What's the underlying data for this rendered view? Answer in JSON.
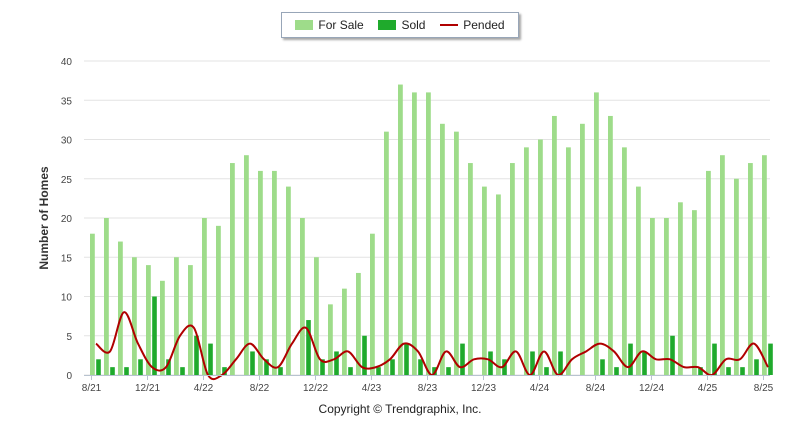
{
  "chart_data": {
    "type": "bar",
    "ylabel": "Number of Homes",
    "ylim": [
      0,
      40
    ],
    "yticks": [
      0,
      5,
      10,
      15,
      20,
      25,
      30,
      35,
      40
    ],
    "categories": [
      "8/21",
      "9/21",
      "10/21",
      "11/21",
      "12/21",
      "1/22",
      "2/22",
      "3/22",
      "4/22",
      "5/22",
      "6/22",
      "7/22",
      "8/22",
      "9/22",
      "10/22",
      "11/22",
      "12/22",
      "1/23",
      "2/23",
      "3/23",
      "4/23",
      "5/23",
      "6/23",
      "7/23",
      "8/23",
      "9/23",
      "10/23",
      "11/23",
      "12/23",
      "1/24",
      "2/24",
      "3/24",
      "4/24",
      "5/24",
      "6/24",
      "7/24",
      "8/24",
      "9/24",
      "10/24",
      "11/24",
      "12/24",
      "1/25",
      "2/25",
      "3/25",
      "4/25",
      "5/25",
      "6/25",
      "7/25",
      "8/25"
    ],
    "tick_labels": [
      {
        "index": 0,
        "label": "8/21"
      },
      {
        "index": 4,
        "label": "12/21"
      },
      {
        "index": 8,
        "label": "4/22"
      },
      {
        "index": 12,
        "label": "8/22"
      },
      {
        "index": 16,
        "label": "12/22"
      },
      {
        "index": 20,
        "label": "4/23"
      },
      {
        "index": 24,
        "label": "8/23"
      },
      {
        "index": 28,
        "label": "12/23"
      },
      {
        "index": 32,
        "label": "4/24"
      },
      {
        "index": 36,
        "label": "8/24"
      },
      {
        "index": 40,
        "label": "12/24"
      },
      {
        "index": 44,
        "label": "4/25"
      },
      {
        "index": 48,
        "label": "8/25"
      }
    ],
    "series": [
      {
        "name": "For Sale",
        "kind": "bar",
        "color": "#9edc8a",
        "values": [
          18,
          20,
          17,
          15,
          14,
          12,
          15,
          14,
          20,
          19,
          27,
          28,
          26,
          26,
          24,
          20,
          15,
          9,
          11,
          13,
          18,
          31,
          37,
          36,
          36,
          32,
          31,
          27,
          24,
          23,
          27,
          29,
          30,
          33,
          29,
          32,
          36,
          33,
          29,
          24,
          20,
          20,
          22,
          21,
          26,
          28,
          25,
          27,
          28
        ]
      },
      {
        "name": "Sold",
        "kind": "bar",
        "color": "#1faa2c",
        "values": [
          2,
          1,
          1,
          2,
          10,
          2,
          1,
          5,
          4,
          1,
          0,
          3,
          2,
          1,
          0,
          7,
          2,
          3,
          1,
          5,
          1,
          2,
          4,
          2,
          1,
          1,
          4,
          0,
          3,
          2,
          0,
          3,
          1,
          3,
          0,
          0,
          2,
          1,
          4,
          3,
          0,
          5,
          0,
          1,
          4,
          1,
          1,
          2,
          4
        ]
      },
      {
        "name": "Pended",
        "kind": "line",
        "color": "#b00000",
        "values": [
          4,
          3,
          8,
          4,
          1,
          1,
          5,
          6,
          0,
          0,
          2,
          4,
          2,
          1,
          4,
          6,
          2,
          2,
          3,
          1,
          1,
          2,
          4,
          3,
          0,
          3,
          1,
          2,
          2,
          1,
          3,
          0,
          3,
          0,
          2,
          3,
          4,
          3,
          1,
          3,
          2,
          2,
          1,
          1,
          0,
          2,
          2,
          4,
          1
        ]
      }
    ],
    "legend_position": "top-center",
    "grid": "horizontal"
  },
  "legend": {
    "for_sale": "For Sale",
    "sold": "Sold",
    "pended": "Pended",
    "for_sale_color": "#9edc8a",
    "sold_color": "#1faa2c",
    "pended_color": "#b00000"
  },
  "footer": {
    "copyright": "Copyright © Trendgraphix, Inc."
  }
}
